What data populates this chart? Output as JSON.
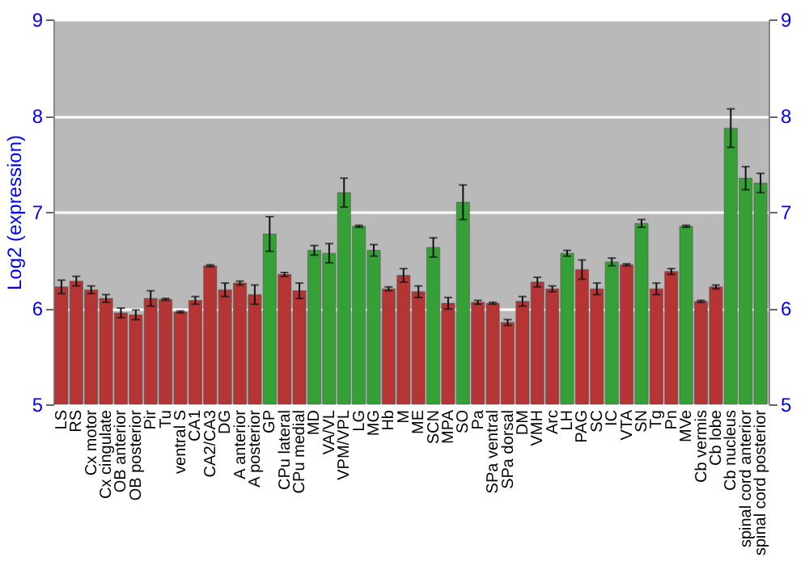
{
  "chart_data": {
    "type": "bar",
    "ylabel": "Log2 (expression)",
    "categories": [
      "LS",
      "RS",
      "Cx motor",
      "Cx cingulate",
      "OB anterior",
      "OB posterior",
      "Pir",
      "Tu",
      "ventral S",
      "CA1",
      "CA2/CA3",
      "DG",
      "A anterior",
      "A posterior",
      "GP",
      "CPu lateral",
      "CPu medial",
      "MD",
      "VA/VL",
      "VPM/VPL",
      "LG",
      "MG",
      "Hb",
      "M",
      "ME",
      "SCN",
      "MPA",
      "SO",
      "Pa",
      "SPa ventral",
      "SPa dorsal",
      "DM",
      "VMH",
      "Arc",
      "LH",
      "PAG",
      "SC",
      "IC",
      "VTA",
      "SN",
      "Tg",
      "Pn",
      "MVe",
      "Cb vermis",
      "Cb lobe",
      "Cb nucleus",
      "spinal cord anterior",
      "spinal cord posterior"
    ],
    "values": [
      6.22,
      6.28,
      6.19,
      6.1,
      5.95,
      5.93,
      6.1,
      6.09,
      5.96,
      6.08,
      6.44,
      6.19,
      6.26,
      6.14,
      6.77,
      6.35,
      6.18,
      6.6,
      6.57,
      7.2,
      6.85,
      6.6,
      6.2,
      6.34,
      6.17,
      6.63,
      6.05,
      7.1,
      6.06,
      6.05,
      5.85,
      6.07,
      6.27,
      6.2,
      6.57,
      6.4,
      6.2,
      6.48,
      6.45,
      6.88,
      6.2,
      6.38,
      6.85,
      6.07,
      6.22,
      7.87,
      7.35,
      7.3
    ],
    "errors": [
      0.07,
      0.05,
      0.04,
      0.04,
      0.05,
      0.05,
      0.08,
      0.01,
      0.01,
      0.04,
      0.01,
      0.07,
      0.02,
      0.1,
      0.18,
      0.02,
      0.08,
      0.05,
      0.1,
      0.15,
      0.01,
      0.06,
      0.02,
      0.07,
      0.06,
      0.1,
      0.06,
      0.18,
      0.02,
      0.01,
      0.03,
      0.05,
      0.05,
      0.03,
      0.03,
      0.1,
      0.06,
      0.04,
      0.01,
      0.04,
      0.06,
      0.03,
      0.01,
      0.01,
      0.02,
      0.2,
      0.12,
      0.1
    ],
    "colors": [
      "#b53434",
      "#b53434",
      "#b53434",
      "#b53434",
      "#b53434",
      "#b53434",
      "#b53434",
      "#b53434",
      "#b53434",
      "#b53434",
      "#b53434",
      "#b53434",
      "#b53434",
      "#b53434",
      "#35a035",
      "#b53434",
      "#b53434",
      "#35a035",
      "#35a035",
      "#35a035",
      "#35a035",
      "#35a035",
      "#b53434",
      "#b53434",
      "#b53434",
      "#35a035",
      "#b53434",
      "#35a035",
      "#b53434",
      "#b53434",
      "#b53434",
      "#b53434",
      "#b53434",
      "#b53434",
      "#35a035",
      "#b53434",
      "#b53434",
      "#35a035",
      "#b53434",
      "#35a035",
      "#b53434",
      "#b53434",
      "#35a035",
      "#b53434",
      "#b53434",
      "#35a035",
      "#35a035",
      "#35a035"
    ],
    "ylim": [
      5,
      9
    ],
    "yticks": [
      5,
      6,
      7,
      8,
      9
    ],
    "y2lim": [
      5,
      9
    ],
    "y2ticks": [
      5,
      6,
      7,
      8,
      9
    ],
    "grid": "y"
  }
}
